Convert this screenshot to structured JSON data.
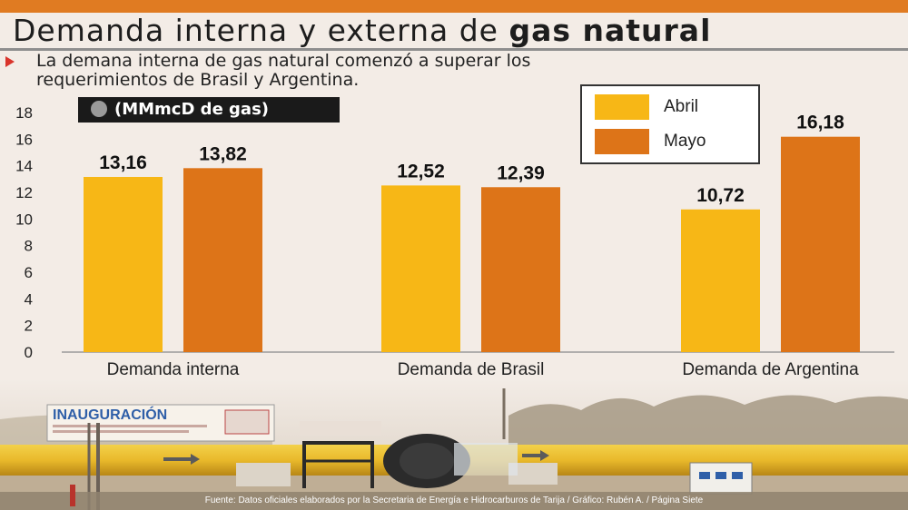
{
  "header": {
    "title_regular": "Demanda interna y externa de ",
    "title_bold": "gas natural",
    "subtitle_line1": "La demana interna de gas natural comenzó a superar los",
    "subtitle_line2": "requerimientos de Brasil y Argentina.",
    "unit": "(MMmcD de gas)"
  },
  "photo_banner": "INAUGURACIÓN",
  "source": "Fuente: Datos oficiales elaborados por la Secretaria de Energía e Hidrocarburos de Tarija / Gráfico: Rubén A. / Página Siete",
  "colors": {
    "abril": "#f7b716",
    "mayo": "#dd7418",
    "topbar": "#e07b22"
  },
  "chart_data": {
    "type": "bar",
    "title": "",
    "xlabel": "",
    "ylabel": "",
    "categories": [
      "Demanda interna",
      "Demanda de Brasil",
      "Demanda de Argentina"
    ],
    "series": [
      {
        "name": "Abril",
        "values": [
          13.16,
          12.52,
          10.72
        ],
        "labels": [
          "13,16",
          "12,52",
          "10,72"
        ]
      },
      {
        "name": "Mayo",
        "values": [
          13.82,
          12.39,
          16.18
        ],
        "labels": [
          "13,82",
          "12,39",
          "16,18"
        ]
      }
    ],
    "ylim": [
      0,
      18
    ],
    "yticks": [
      "0",
      "2",
      "4",
      "6",
      "8",
      "10",
      "12",
      "14",
      "16",
      "18"
    ],
    "legend": "top-right",
    "grid": false
  }
}
